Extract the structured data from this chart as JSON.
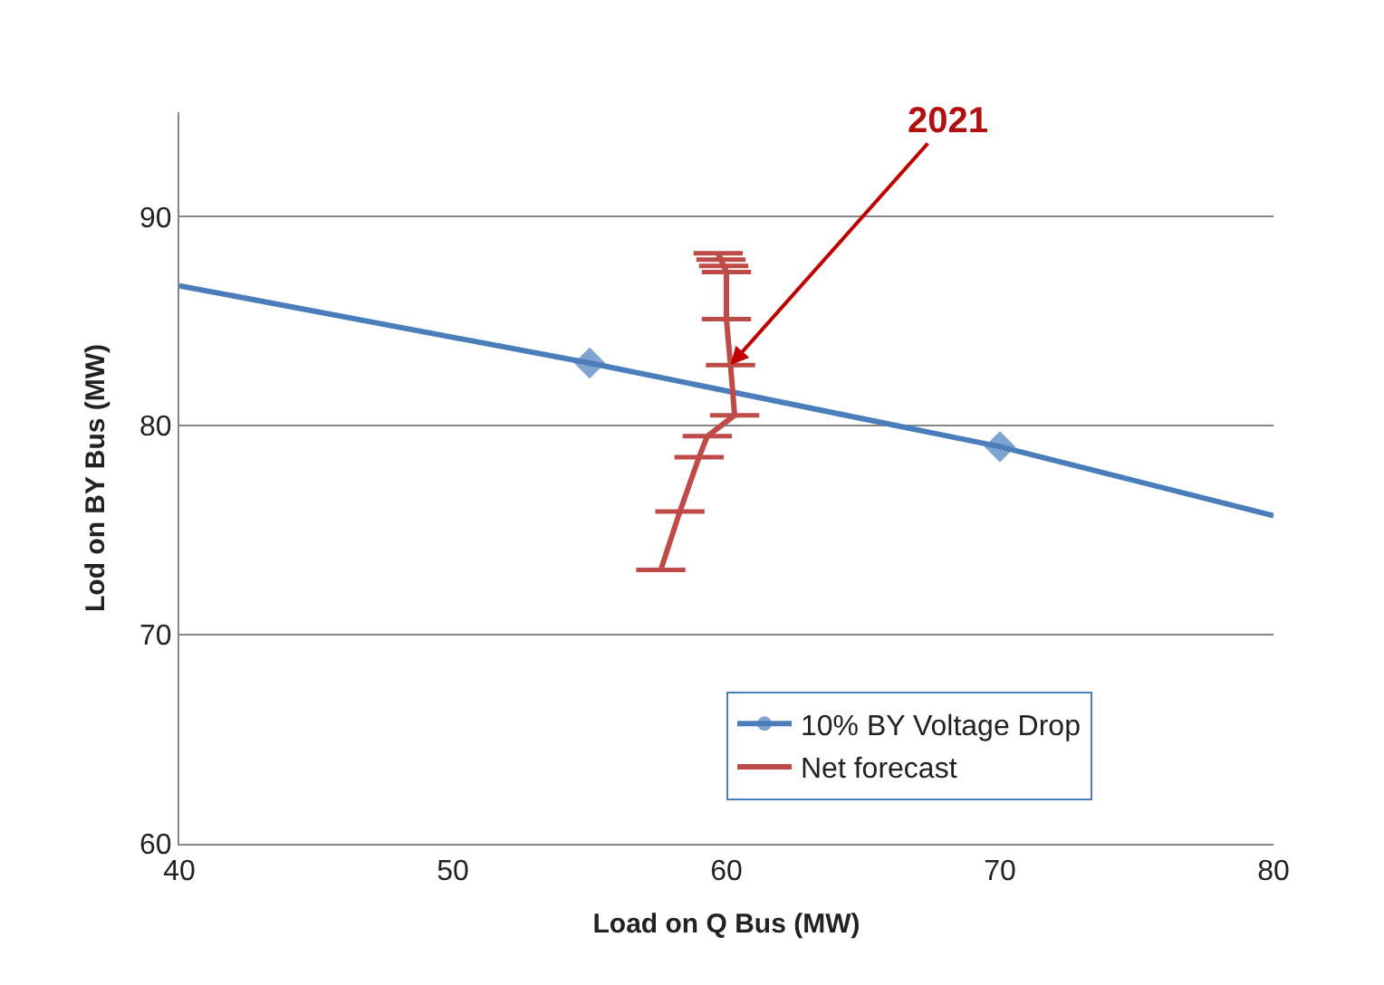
{
  "chart_data": {
    "type": "line",
    "xlabel": "Load on Q Bus (MW)",
    "ylabel": "Lod on BY Bus (MW)",
    "xlim": [
      40,
      80
    ],
    "xticks": [
      40,
      50,
      60,
      70,
      80
    ],
    "ylim": [
      60,
      95
    ],
    "yticks": [
      60,
      70,
      80,
      90
    ],
    "grid": "y",
    "legend": "bottom right",
    "series": [
      {
        "name": "10% BY Voltage Drop",
        "color": "#4a7ebb",
        "x": [
          40,
          55,
          70,
          80
        ],
        "values": [
          86.7,
          83,
          79,
          75.7
        ],
        "marker": [
          "none",
          "diamond",
          "diamond",
          "none"
        ]
      },
      {
        "name": "Net forecast",
        "color": "#be4b48",
        "x": [
          57.6,
          58.3,
          59.0,
          59.3,
          60.3,
          60.15,
          60.0,
          60.0,
          59.9,
          59.8,
          59.7
        ],
        "values": [
          73.1,
          75.9,
          78.5,
          79.5,
          80.5,
          82.9,
          85.1,
          87.35,
          87.65,
          87.95,
          88.25
        ],
        "marker": "none",
        "xerrors": [
          0.9,
          0.9,
          0.9,
          0.9,
          0.9,
          0.9,
          0.9,
          0.9,
          0.9,
          0.9,
          0.9
        ]
      }
    ],
    "annotations": [
      {
        "text": "2021",
        "x": 60.15,
        "y": 82.9
      }
    ]
  }
}
